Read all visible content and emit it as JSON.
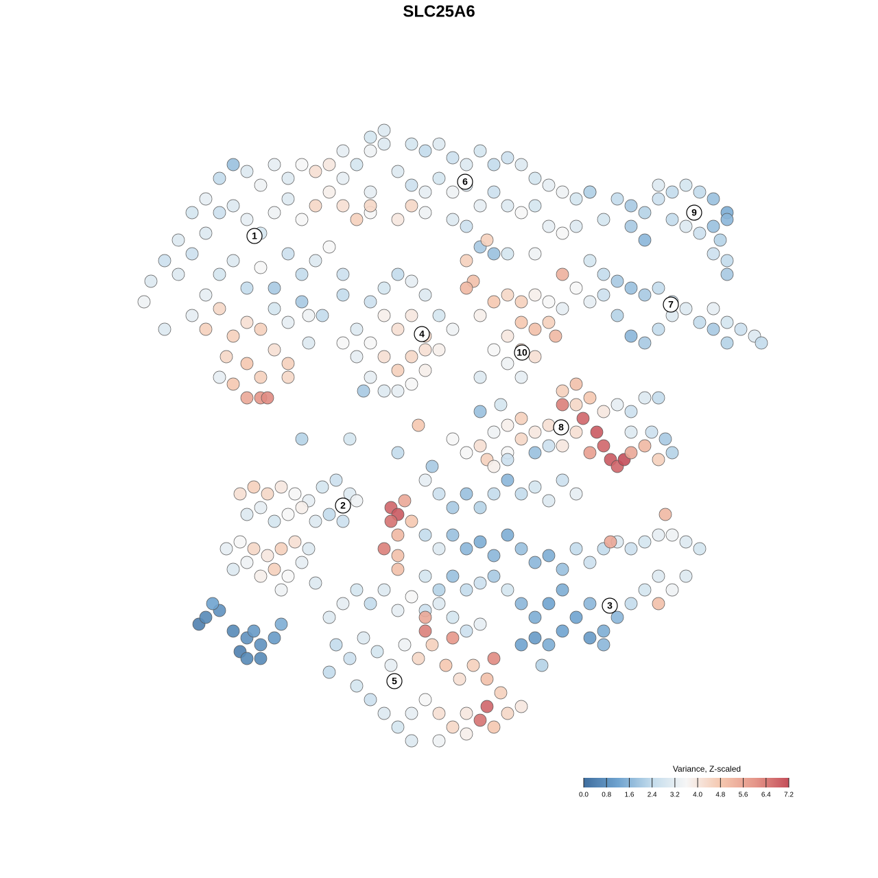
{
  "chart_data": {
    "type": "scatter",
    "title": "SLC25A6",
    "xlim": [
      0,
      128
    ],
    "ylim": [
      128,
      0
    ],
    "x": [
      22,
      24,
      26,
      28,
      30,
      32,
      34,
      36,
      38,
      40,
      42,
      44,
      46,
      48,
      50,
      52,
      54,
      56,
      26,
      28,
      30,
      32,
      34,
      36,
      38,
      40,
      42,
      44,
      46,
      48,
      50,
      52,
      54,
      54,
      30,
      32,
      34,
      36,
      38,
      40,
      42,
      44,
      46,
      48,
      50,
      44,
      28,
      30,
      32,
      34,
      36,
      38,
      40,
      42,
      33,
      36,
      38,
      40,
      42,
      34,
      36,
      38,
      39,
      32,
      21,
      24,
      45,
      47,
      50,
      54,
      56,
      60,
      62,
      64,
      66,
      68,
      70,
      72,
      74,
      76,
      78,
      80,
      82,
      84,
      58,
      60,
      62,
      64,
      66,
      68,
      70,
      72,
      74,
      76,
      78,
      80,
      82,
      84,
      62,
      66,
      68,
      70,
      71,
      60,
      58,
      54,
      68,
      69,
      68,
      72,
      88,
      90,
      92,
      94,
      96,
      96,
      98,
      100,
      102,
      104,
      106,
      106,
      105,
      104,
      106,
      106,
      92,
      94,
      98,
      100,
      102,
      86,
      104,
      86,
      88,
      90,
      92,
      94,
      96,
      98,
      100,
      102,
      104,
      106,
      108,
      110,
      111,
      104,
      106,
      88,
      90,
      92,
      94,
      96,
      98,
      84,
      86,
      52,
      54,
      56,
      58,
      60,
      62,
      64,
      66,
      56,
      58,
      60,
      62,
      64,
      54,
      56,
      58,
      60,
      62,
      54,
      56,
      58,
      60,
      62,
      52,
      50,
      53,
      50,
      72,
      74,
      76,
      78,
      80,
      76,
      78,
      80,
      74,
      76,
      78,
      74,
      76,
      72,
      70,
      81,
      82,
      82,
      84,
      82,
      84,
      86,
      88,
      90,
      92,
      94,
      96,
      85,
      87,
      88,
      89,
      90,
      91,
      92,
      94,
      96,
      97,
      98,
      95,
      92,
      86,
      84,
      80,
      78,
      76,
      74,
      72,
      70,
      68,
      76,
      74,
      71,
      80,
      82,
      78,
      35,
      37,
      39,
      41,
      43,
      45,
      47,
      49,
      51,
      36,
      38,
      40,
      42,
      44,
      46,
      48,
      33,
      35,
      37,
      39,
      41,
      43,
      45,
      34,
      36,
      38,
      40,
      42,
      44,
      41,
      46,
      50,
      52,
      57,
      58,
      57,
      59,
      56,
      58,
      60,
      58,
      62,
      64,
      66,
      68,
      70,
      72,
      74,
      76,
      78,
      80,
      82,
      84,
      62,
      64,
      66,
      68,
      70,
      72,
      74,
      76,
      78,
      80,
      82,
      84,
      86,
      88,
      90,
      92,
      94,
      96,
      98,
      100,
      102,
      62,
      64,
      66,
      68,
      70,
      72,
      74,
      76,
      78,
      80,
      82,
      84,
      86,
      88,
      90,
      92,
      94,
      96,
      98,
      100,
      78,
      80,
      82,
      86,
      88,
      76,
      79,
      97,
      89,
      96,
      63,
      72,
      74,
      48,
      50,
      52,
      54,
      56,
      58,
      60,
      62,
      64,
      66,
      68,
      70,
      49,
      51,
      53,
      55,
      57,
      59,
      61,
      63,
      65,
      67,
      69,
      71,
      73,
      52,
      54,
      56,
      58,
      60,
      62,
      64,
      66,
      68,
      70,
      71,
      72,
      74,
      76,
      60,
      64,
      68,
      62,
      66,
      72,
      58,
      62,
      48,
      29,
      30,
      32,
      34,
      36,
      37,
      35,
      36,
      38,
      40,
      31,
      41,
      38,
      44,
      51,
      61,
      66,
      70,
      70,
      73,
      58,
      45,
      42,
      74,
      78,
      82,
      86
    ],
    "y": [
      41,
      38,
      35,
      31,
      29,
      26,
      24,
      25,
      27,
      24,
      26,
      24,
      25,
      24,
      26,
      24,
      22,
      21,
      40,
      37,
      34,
      31,
      30,
      32,
      34,
      31,
      29,
      32,
      30,
      28,
      30,
      32,
      31,
      28,
      43,
      40,
      38,
      42,
      39,
      42,
      37,
      40,
      38,
      36,
      40,
      44,
      46,
      48,
      45,
      49,
      47,
      48,
      45,
      47,
      52,
      53,
      55,
      51,
      55,
      56,
      58,
      58,
      58,
      55,
      44,
      48,
      50,
      46,
      22,
      20,
      19,
      21,
      22,
      21,
      23,
      24,
      22,
      24,
      23,
      24,
      26,
      27,
      28,
      29,
      25,
      27,
      28,
      26,
      28,
      27,
      30,
      28,
      30,
      31,
      30,
      33,
      34,
      33,
      31,
      32,
      33,
      36,
      35,
      30,
      32,
      30,
      38,
      41,
      42,
      37,
      32,
      29,
      30,
      31,
      29,
      27,
      28,
      27,
      28,
      29,
      31,
      32,
      35,
      33,
      38,
      40,
      33,
      35,
      32,
      33,
      34,
      28,
      37,
      38,
      40,
      41,
      42,
      43,
      42,
      44,
      45,
      47,
      45,
      47,
      48,
      49,
      50,
      48,
      50,
      43,
      46,
      49,
      50,
      48,
      46,
      42,
      44,
      48,
      44,
      42,
      40,
      41,
      43,
      46,
      48,
      46,
      48,
      46,
      49,
      51,
      50,
      52,
      54,
      52,
      54,
      55,
      57,
      57,
      56,
      51,
      52,
      50,
      57,
      43,
      44,
      43,
      44,
      43,
      44,
      47,
      48,
      47,
      49,
      51,
      52,
      53,
      55,
      51,
      46,
      49,
      45,
      57,
      56,
      59,
      59,
      58,
      60,
      59,
      60,
      58,
      58,
      61,
      63,
      65,
      67,
      68,
      67,
      66,
      65,
      67,
      64,
      66,
      63,
      63,
      66,
      63,
      62,
      63,
      64,
      62,
      63,
      65,
      66,
      61,
      66,
      67,
      65,
      65,
      66,
      72,
      71,
      72,
      71,
      72,
      73,
      71,
      70,
      72,
      75,
      74,
      76,
      75,
      74,
      76,
      75,
      80,
      79,
      80,
      81,
      80,
      79,
      80,
      83,
      82,
      84,
      83,
      84,
      82,
      86,
      85,
      76,
      73,
      74,
      75,
      76,
      73,
      80,
      78,
      76,
      81,
      70,
      72,
      74,
      72,
      74,
      72,
      70,
      72,
      71,
      73,
      70,
      72,
      78,
      80,
      78,
      80,
      79,
      81,
      78,
      80,
      82,
      81,
      83,
      80,
      82,
      80,
      79,
      80,
      79,
      78,
      78,
      79,
      80,
      84,
      86,
      84,
      86,
      85,
      84,
      86,
      88,
      90,
      88,
      86,
      90,
      88,
      92,
      90,
      88,
      86,
      84,
      86,
      84,
      93,
      94,
      92,
      93,
      94,
      94,
      97,
      75,
      79,
      88,
      68,
      68,
      67,
      90,
      88,
      86,
      88,
      86,
      89,
      87,
      89,
      88,
      90,
      92,
      91,
      94,
      96,
      93,
      95,
      97,
      94,
      96,
      94,
      97,
      99,
      97,
      99,
      101,
      100,
      102,
      104,
      106,
      104,
      102,
      104,
      106,
      104,
      105,
      103,
      106,
      104,
      103,
      108,
      108,
      107,
      92,
      93,
      96,
      83,
      90,
      98,
      91,
      90,
      89,
      92,
      93,
      92,
      95,
      96,
      94,
      93,
      88,
      91,
      96,
      64,
      64,
      62,
      64,
      60,
      55,
      59,
      66,
      46,
      53,
      37,
      37,
      40,
      28
    ],
    "values": [
      3.0,
      2.6,
      3.0,
      2.8,
      3.2,
      2.4,
      1.8,
      3.0,
      3.4,
      3.2,
      3.0,
      3.6,
      4.2,
      4.0,
      3.2,
      2.8,
      3.4,
      3.0,
      3.0,
      2.6,
      3.0,
      2.6,
      3.0,
      3.2,
      2.8,
      3.4,
      3.0,
      3.6,
      4.4,
      3.8,
      4.2,
      4.6,
      3.6,
      3.2,
      3.2,
      2.8,
      3.0,
      2.4,
      3.6,
      2.0,
      2.6,
      2.4,
      3.0,
      3.6,
      2.6,
      2.0,
      3.2,
      4.6,
      4.4,
      4.6,
      4.2,
      4.6,
      2.8,
      3.2,
      4.4,
      4.8,
      4.6,
      4.2,
      4.4,
      4.8,
      5.6,
      6.0,
      6.2,
      3.2,
      3.4,
      3.0,
      3.0,
      2.4,
      3.2,
      2.8,
      3.0,
      2.8,
      2.4,
      3.0,
      2.6,
      3.0,
      2.8,
      2.4,
      2.6,
      3.0,
      2.8,
      3.2,
      3.4,
      2.8,
      3.0,
      2.6,
      3.2,
      2.8,
      3.4,
      3.0,
      3.2,
      2.6,
      3.0,
      3.6,
      2.8,
      3.2,
      3.6,
      3.0,
      3.4,
      3.0,
      2.6,
      2.0,
      4.6,
      4.4,
      4.0,
      4.4,
      4.6,
      5.0,
      5.2,
      1.8,
      2.8,
      2.4,
      2.0,
      2.2,
      2.6,
      3.0,
      2.4,
      2.8,
      2.4,
      1.8,
      1.4,
      1.6,
      2.2,
      1.8,
      2.4,
      2.0,
      2.0,
      1.6,
      2.4,
      3.0,
      2.6,
      2.4,
      2.6,
      2.8,
      2.4,
      2.0,
      1.8,
      2.0,
      2.4,
      2.6,
      3.0,
      2.4,
      3.2,
      2.8,
      2.6,
      3.0,
      2.4,
      2.0,
      2.2,
      2.6,
      2.2,
      1.6,
      2.0,
      2.4,
      3.0,
      3.6,
      3.2,
      3.0,
      2.6,
      2.8,
      2.4,
      3.2,
      3.0,
      2.8,
      3.4,
      3.8,
      4.2,
      4.0,
      4.4,
      3.8,
      3.6,
      4.2,
      4.6,
      4.4,
      3.8,
      3.2,
      3.0,
      3.2,
      3.6,
      4.2,
      3.2,
      3.6,
      2.0,
      2.4,
      4.8,
      4.4,
      4.6,
      3.8,
      3.6,
      4.8,
      5.0,
      4.6,
      4.0,
      4.4,
      4.2,
      3.4,
      3.2,
      3.6,
      3.8,
      5.2,
      3.2,
      4.6,
      5.0,
      6.4,
      4.4,
      4.8,
      4.0,
      3.2,
      2.6,
      3.0,
      2.4,
      6.8,
      7.0,
      6.8,
      7.0,
      6.8,
      7.2,
      5.6,
      5.2,
      4.6,
      2.0,
      2.2,
      2.6,
      3.0,
      5.8,
      4.2,
      4.2,
      4.0,
      4.4,
      3.8,
      3.4,
      4.2,
      3.6,
      4.6,
      3.6,
      4.6,
      2.6,
      4.0,
      1.8,
      4.2,
      4.6,
      4.4,
      4.0,
      3.6,
      3.2,
      2.8,
      2.6,
      3.0,
      3.0,
      3.2,
      2.8,
      3.6,
      3.8,
      3.0,
      2.4,
      3.2,
      3.6,
      4.4,
      4.0,
      4.6,
      4.2,
      3.0,
      3.0,
      3.4,
      3.8,
      4.6,
      3.6,
      3.2,
      3.4,
      3.0,
      2.6,
      3.4,
      6.8,
      7.0,
      6.6,
      5.6,
      6.4,
      5.2,
      4.8,
      5.0,
      3.2,
      2.6,
      2.0,
      1.8,
      2.2,
      2.4,
      1.6,
      2.4,
      2.8,
      3.0,
      2.6,
      3.2,
      2.4,
      3.0,
      1.8,
      1.6,
      1.4,
      1.6,
      1.4,
      1.8,
      1.6,
      1.4,
      1.8,
      2.4,
      2.6,
      2.4,
      3.0,
      2.6,
      2.8,
      3.2,
      3.4,
      3.0,
      2.8,
      2.8,
      2.2,
      1.8,
      2.4,
      2.6,
      2.0,
      2.8,
      1.6,
      1.4,
      1.2,
      1.4,
      1.2,
      1.6,
      1.4,
      1.6,
      2.4,
      2.8,
      3.0,
      3.4,
      3.0,
      1.0,
      1.4,
      1.2,
      1.0,
      1.6,
      1.2,
      2.2,
      5.2,
      5.6,
      5.0,
      2.0,
      3.8,
      2.6,
      3.0,
      3.2,
      2.8,
      2.4,
      3.0,
      3.2,
      3.6,
      2.6,
      3.0,
      2.8,
      2.6,
      3.2,
      2.4,
      2.6,
      3.0,
      2.8,
      3.2,
      3.4,
      4.4,
      4.6,
      4.8,
      4.2,
      4.6,
      5.0,
      4.6,
      2.8,
      2.6,
      3.0,
      2.8,
      3.2,
      3.6,
      4.2,
      4.4,
      4.0,
      6.6,
      6.8,
      4.8,
      4.4,
      4.0,
      3.0,
      3.4,
      3.8,
      6.4,
      6.0,
      6.2,
      5.0,
      5.6,
      2.4,
      0.4,
      0.6,
      0.8,
      0.6,
      0.8,
      1.0,
      0.4,
      0.6,
      0.8,
      1.0,
      1.2,
      1.4,
      0.6,
      2.2,
      2.8,
      4.8,
      3.6,
      1.8,
      3.0,
      2.8,
      2.4,
      3.4,
      4.6,
      2.8,
      3.4,
      5.4,
      2.2
    ],
    "clusters": [
      {
        "label": "1",
        "x": 37.1,
        "y": 34.4
      },
      {
        "label": "2",
        "x": 50.0,
        "y": 73.7
      },
      {
        "label": "3",
        "x": 88.9,
        "y": 88.3
      },
      {
        "label": "4",
        "x": 61.5,
        "y": 48.7
      },
      {
        "label": "5",
        "x": 57.5,
        "y": 99.3
      },
      {
        "label": "6",
        "x": 67.8,
        "y": 26.5
      },
      {
        "label": "7",
        "x": 97.8,
        "y": 44.4
      },
      {
        "label": "8",
        "x": 81.8,
        "y": 62.3
      },
      {
        "label": "9",
        "x": 101.2,
        "y": 31.0
      },
      {
        "label": "10",
        "x": 76.1,
        "y": 51.4
      }
    ],
    "legend": {
      "title": "Variance, Z-scaled",
      "position": "bottom-right",
      "clim": [
        0,
        7.2
      ],
      "colormap": [
        "#3f6e9f",
        "#6fa3cf",
        "#c3dcec",
        "#f6f6f6",
        "#f5c8b0",
        "#e5978a",
        "#c44e5a"
      ],
      "ticks": [
        {
          "value": 0,
          "label": "0.0"
        },
        0.8,
        1.6,
        2.4,
        3.2,
        {
          "value": 4,
          "label": "4.0"
        },
        4.8,
        5.6,
        6.4,
        7.2
      ]
    }
  }
}
